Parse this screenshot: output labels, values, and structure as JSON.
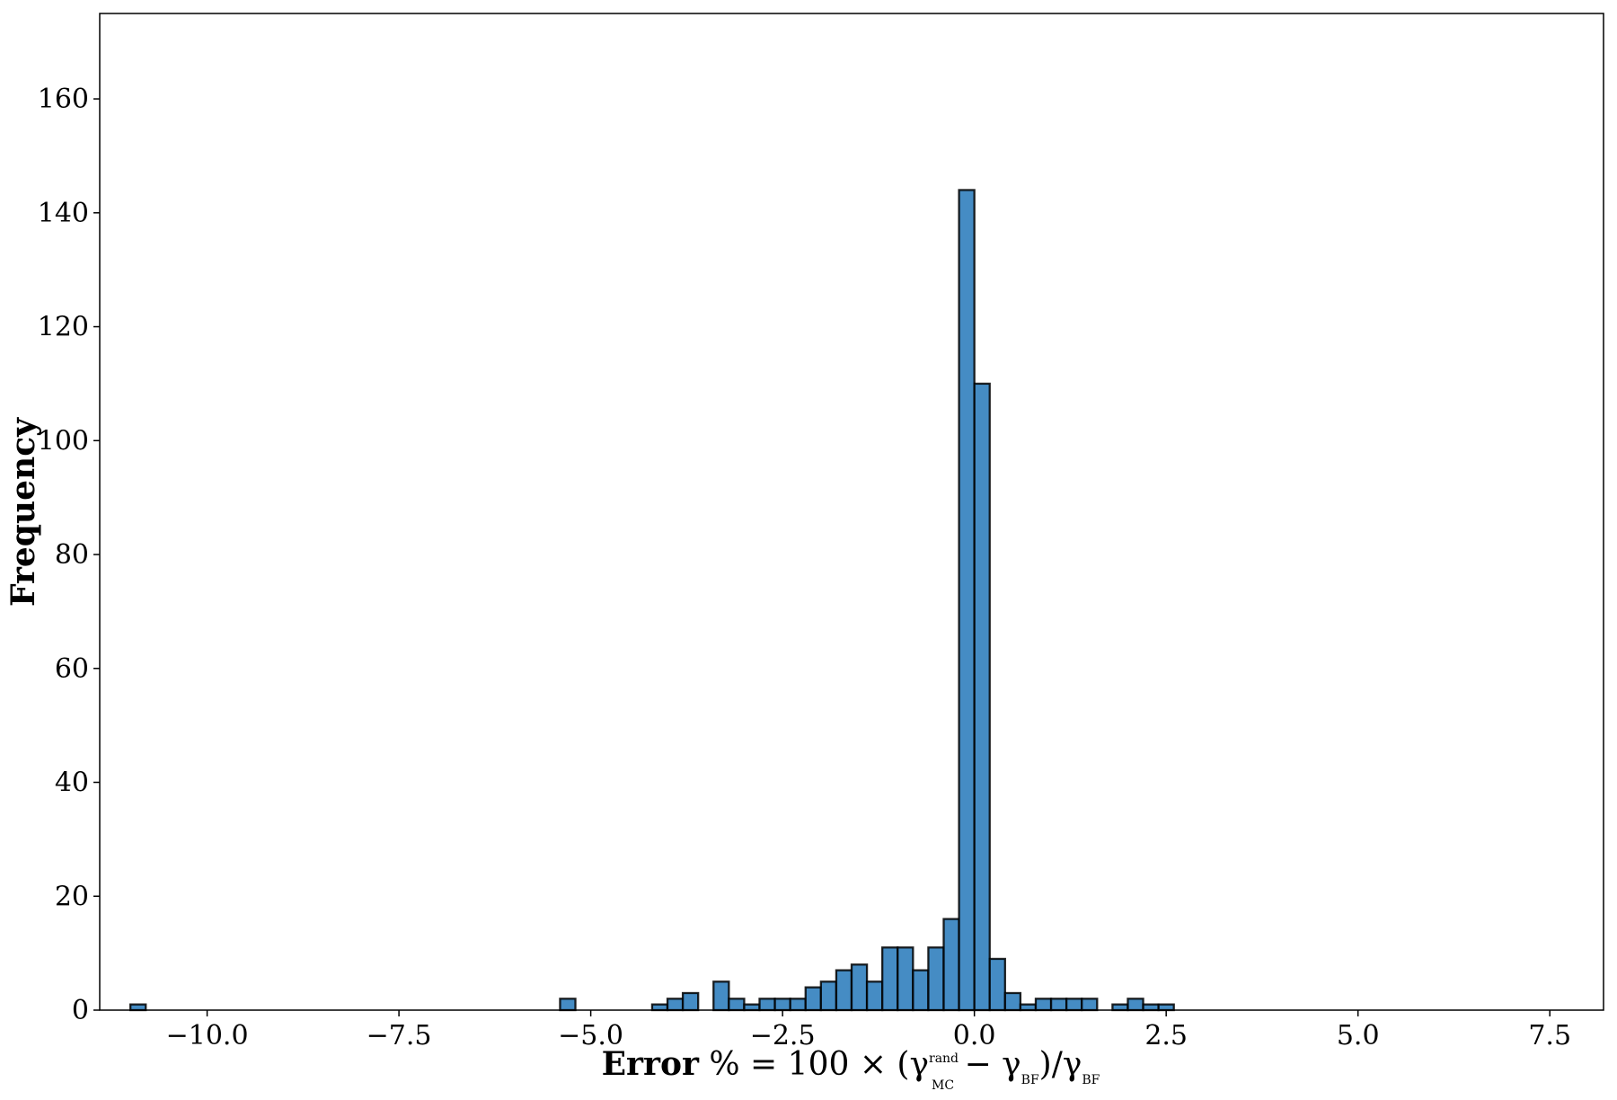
{
  "chart_data": {
    "type": "histogram",
    "y_label": "Frequency",
    "x_label": [
      "Error",
      "% = 100 × (γ",
      "rand",
      "MC",
      " − γ",
      "BF",
      ")/γ",
      "BF"
    ],
    "bins": [
      -11.0,
      -10.8,
      -10.6,
      -10.4,
      -10.2,
      -10.0,
      -9.8,
      -9.6,
      -9.4,
      -9.2,
      -9.0,
      -8.8,
      -8.6,
      -8.4,
      -8.2,
      -8.0,
      -7.8,
      -7.6,
      -7.4,
      -7.2,
      -7.0,
      -6.8,
      -6.6,
      -6.4,
      -6.2,
      -6.0,
      -5.8,
      -5.6,
      -5.4,
      -5.2,
      -5.0,
      -4.8,
      -4.6,
      -4.4,
      -4.2,
      -4.0,
      -3.8,
      -3.6,
      -3.4,
      -3.2,
      -3.0,
      -2.8,
      -2.6,
      -2.4,
      -2.2,
      -2.0,
      -1.8,
      -1.6,
      -1.4,
      -1.2,
      -1.0,
      -0.8,
      -0.6,
      -0.4,
      -0.2,
      0.0,
      0.2,
      0.4,
      0.6,
      0.8,
      1.0,
      1.2,
      1.4,
      1.6,
      1.8,
      2.0,
      2.2,
      2.4,
      2.6,
      2.8
    ],
    "values": [
      1,
      0,
      0,
      0,
      0,
      0,
      0,
      0,
      0,
      0,
      0,
      0,
      0,
      0,
      0,
      0,
      0,
      0,
      0,
      0,
      0,
      0,
      0,
      0,
      0,
      0,
      0,
      0,
      2,
      0,
      0,
      0,
      0,
      0,
      1,
      2,
      3,
      0,
      5,
      2,
      1,
      2,
      2,
      2,
      4,
      5,
      7,
      8,
      5,
      11,
      11,
      7,
      11,
      16,
      144,
      110,
      9,
      3,
      1,
      2,
      2,
      2,
      2,
      0,
      1,
      2,
      1,
      1,
      0
    ],
    "color": "#3b86c1",
    "edgecolor": "#000000",
    "xlim": [
      -11.4,
      8.2
    ],
    "xticks": [
      {
        "value": -10.0,
        "label": "−10.0"
      },
      {
        "value": -7.5,
        "label": "−7.5"
      },
      {
        "value": -5.0,
        "label": "−5.0"
      },
      {
        "value": -2.5,
        "label": "−2.5"
      },
      {
        "value": 0.0,
        "label": "0.0"
      },
      {
        "value": 2.5,
        "label": "2.5"
      },
      {
        "value": 5.0,
        "label": "5.0"
      },
      {
        "value": 7.5,
        "label": "7.5"
      }
    ],
    "ylim": [
      0,
      175
    ],
    "yticks": [
      0,
      20,
      40,
      60,
      80,
      100,
      120,
      140,
      160
    ],
    "grid": false
  }
}
